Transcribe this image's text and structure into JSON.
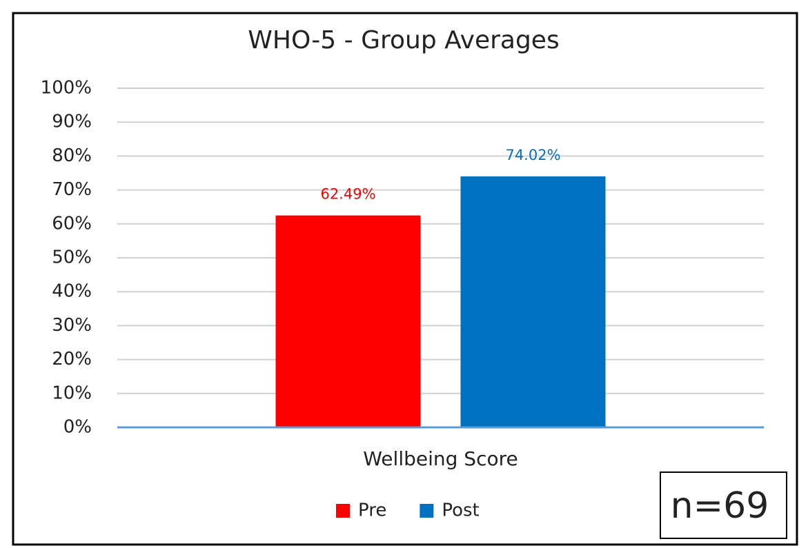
{
  "chart_data": {
    "type": "bar",
    "title": "WHO-5  - Group Averages",
    "categories": [
      "Wellbeing Score"
    ],
    "series": [
      {
        "name": "Pre",
        "color": "#ff0000",
        "values": [
          62.49
        ],
        "value_labels": [
          "62.49%"
        ]
      },
      {
        "name": "Post",
        "color": "#0070c0",
        "values": [
          74.02
        ],
        "value_labels": [
          "74.02%"
        ]
      }
    ],
    "ylim": [
      0,
      100
    ],
    "yticks": [
      {
        "value": 0,
        "label": "0%"
      },
      {
        "value": 10,
        "label": "10%"
      },
      {
        "value": 20,
        "label": "20%"
      },
      {
        "value": 30,
        "label": "30%"
      },
      {
        "value": 40,
        "label": "40%"
      },
      {
        "value": 50,
        "label": "50%"
      },
      {
        "value": 60,
        "label": "60%"
      },
      {
        "value": 70,
        "label": "70%"
      },
      {
        "value": 80,
        "label": "80%"
      },
      {
        "value": 90,
        "label": "90%"
      },
      {
        "value": 100,
        "label": "100%"
      }
    ],
    "grid": true,
    "legend": "bottom",
    "annotation": "n=69"
  }
}
